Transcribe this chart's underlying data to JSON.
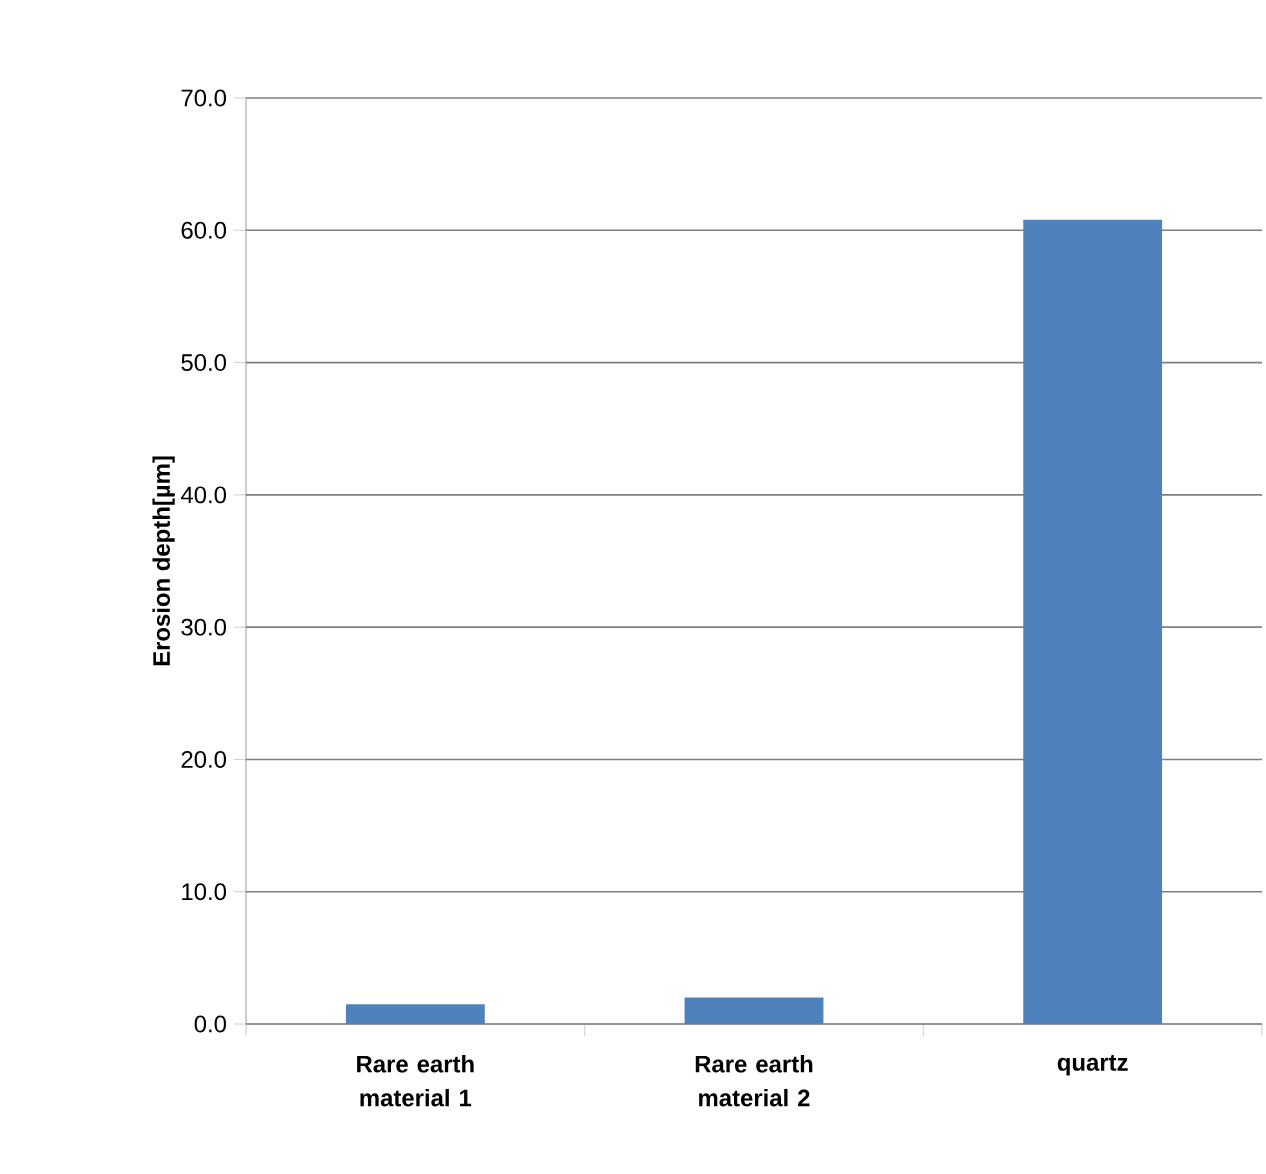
{
  "chart_data": {
    "type": "bar",
    "ylabel": "Erosion depth[µm]",
    "categories": [
      "Rare earth material 1",
      "Rare earth material 2",
      "quartz"
    ],
    "values": [
      1.5,
      2.0,
      60.8
    ],
    "color": "#4f81bd",
    "ylim": [
      0,
      70
    ],
    "yticks": [
      {
        "value": 0,
        "label": "0.0"
      },
      {
        "value": 10,
        "label": "10.0"
      },
      {
        "value": 20,
        "label": "20.0"
      },
      {
        "value": 30,
        "label": "30.0"
      },
      {
        "value": 40,
        "label": "40.0"
      },
      {
        "value": 50,
        "label": "50.0"
      },
      {
        "value": 60,
        "label": "60.0"
      },
      {
        "value": 70,
        "label": "70.0"
      }
    ],
    "grid": "y"
  }
}
